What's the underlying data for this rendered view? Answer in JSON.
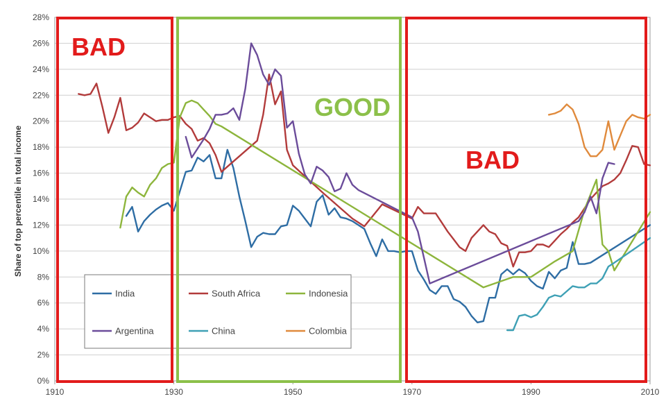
{
  "chart_data": {
    "type": "line",
    "title": "",
    "xlabel": "",
    "ylabel": "Share of top percentile in total income",
    "xlim": [
      1910,
      2010
    ],
    "ylim": [
      0,
      28
    ],
    "x_ticks": [
      "1910",
      "1930",
      "1950",
      "1970",
      "1990",
      "2010"
    ],
    "y_ticks": [
      "0%",
      "2%",
      "4%",
      "6%",
      "8%",
      "10%",
      "12%",
      "14%",
      "16%",
      "18%",
      "20%",
      "22%",
      "24%",
      "26%",
      "28%"
    ],
    "grid": true,
    "legend_position": "bottom-left",
    "series": [
      {
        "name": "India",
        "color": "#2e6da4",
        "points": [
          [
            1922,
            12.7
          ],
          [
            1923,
            13.4
          ],
          [
            1924,
            11.5
          ],
          [
            1925,
            12.3
          ],
          [
            1926,
            12.8
          ],
          [
            1927,
            13.2
          ],
          [
            1928,
            13.5
          ],
          [
            1929,
            13.7
          ],
          [
            1930,
            13.1
          ],
          [
            1931,
            14.6
          ],
          [
            1932,
            16.1
          ],
          [
            1933,
            16.2
          ],
          [
            1934,
            17.2
          ],
          [
            1935,
            16.9
          ],
          [
            1936,
            17.4
          ],
          [
            1937,
            15.6
          ],
          [
            1938,
            15.6
          ],
          [
            1939,
            17.8
          ],
          [
            1940,
            16.4
          ],
          [
            1941,
            14.2
          ],
          [
            1942,
            12.3
          ],
          [
            1943,
            10.3
          ],
          [
            1944,
            11.1
          ],
          [
            1945,
            11.4
          ],
          [
            1946,
            11.3
          ],
          [
            1947,
            11.3
          ],
          [
            1948,
            11.9
          ],
          [
            1949,
            12.0
          ],
          [
            1950,
            13.5
          ],
          [
            1951,
            13.1
          ],
          [
            1952,
            12.5
          ],
          [
            1953,
            11.9
          ],
          [
            1954,
            13.8
          ],
          [
            1955,
            14.3
          ],
          [
            1956,
            12.8
          ],
          [
            1957,
            13.3
          ],
          [
            1958,
            12.6
          ],
          [
            1959,
            12.5
          ],
          [
            1960,
            12.3
          ],
          [
            1961,
            12.0
          ],
          [
            1962,
            11.7
          ],
          [
            1963,
            10.6
          ],
          [
            1964,
            9.6
          ],
          [
            1965,
            10.9
          ],
          [
            1966,
            10.0
          ],
          [
            1967,
            10.0
          ],
          [
            1968,
            9.9
          ],
          [
            1969,
            10.0
          ],
          [
            1970,
            10.0
          ],
          [
            1971,
            8.5
          ],
          [
            1972,
            7.8
          ],
          [
            1973,
            7.0
          ],
          [
            1974,
            6.7
          ],
          [
            1975,
            7.3
          ],
          [
            1976,
            7.3
          ],
          [
            1977,
            6.3
          ],
          [
            1978,
            6.1
          ],
          [
            1979,
            5.7
          ],
          [
            1980,
            5.0
          ],
          [
            1981,
            4.5
          ],
          [
            1982,
            4.6
          ],
          [
            1983,
            6.4
          ],
          [
            1984,
            6.4
          ],
          [
            1985,
            8.2
          ],
          [
            1986,
            8.6
          ],
          [
            1987,
            8.2
          ],
          [
            1988,
            8.6
          ],
          [
            1989,
            8.3
          ],
          [
            1990,
            7.7
          ],
          [
            1991,
            7.3
          ],
          [
            1992,
            7.1
          ],
          [
            1993,
            8.4
          ],
          [
            1994,
            7.9
          ],
          [
            1995,
            8.5
          ],
          [
            1996,
            8.7
          ],
          [
            1997,
            10.7
          ],
          [
            1998,
            9.0
          ],
          [
            1999,
            9.0
          ],
          [
            2000,
            9.1
          ],
          [
            2010,
            12.0
          ]
        ]
      },
      {
        "name": "South Africa",
        "color": "#b23b3b",
        "points": [
          [
            1914,
            22.1
          ],
          [
            1915,
            22.0
          ],
          [
            1916,
            22.1
          ],
          [
            1917,
            22.9
          ],
          [
            1918,
            21.1
          ],
          [
            1919,
            19.1
          ],
          [
            1920,
            20.3
          ],
          [
            1921,
            21.8
          ],
          [
            1922,
            19.3
          ],
          [
            1923,
            19.5
          ],
          [
            1924,
            19.9
          ],
          [
            1925,
            20.6
          ],
          [
            1926,
            20.3
          ],
          [
            1927,
            20.0
          ],
          [
            1928,
            20.1
          ],
          [
            1929,
            20.1
          ],
          [
            1930,
            20.3
          ],
          [
            1931,
            20.4
          ],
          [
            1932,
            19.8
          ],
          [
            1933,
            19.4
          ],
          [
            1934,
            18.5
          ],
          [
            1935,
            18.7
          ],
          [
            1936,
            18.3
          ],
          [
            1937,
            17.4
          ],
          [
            1938,
            16.1
          ],
          [
            1944,
            18.5
          ],
          [
            1945,
            20.5
          ],
          [
            1946,
            23.6
          ],
          [
            1947,
            21.3
          ],
          [
            1948,
            22.3
          ],
          [
            1949,
            17.8
          ],
          [
            1950,
            16.6
          ],
          [
            1955,
            14.5
          ],
          [
            1960,
            12.5
          ],
          [
            1962,
            11.9
          ],
          [
            1965,
            13.6
          ],
          [
            1970,
            12.5
          ],
          [
            1971,
            13.4
          ],
          [
            1972,
            12.9
          ],
          [
            1973,
            12.9
          ],
          [
            1974,
            12.9
          ],
          [
            1976,
            11.5
          ],
          [
            1977,
            10.9
          ],
          [
            1978,
            10.3
          ],
          [
            1979,
            10.0
          ],
          [
            1980,
            11.0
          ],
          [
            1982,
            12.0
          ],
          [
            1983,
            11.5
          ],
          [
            1984,
            11.3
          ],
          [
            1985,
            10.6
          ],
          [
            1986,
            10.4
          ],
          [
            1987,
            8.8
          ],
          [
            1988,
            9.9
          ],
          [
            1989,
            9.9
          ],
          [
            1990,
            10.0
          ],
          [
            1991,
            10.5
          ],
          [
            1992,
            10.5
          ],
          [
            1993,
            10.3
          ],
          [
            1994,
            10.8
          ],
          [
            1995,
            11.3
          ],
          [
            1996,
            11.7
          ],
          [
            1997,
            12.2
          ],
          [
            1998,
            12.6
          ],
          [
            1999,
            13.3
          ],
          [
            2000,
            14.0
          ],
          [
            2001,
            14.5
          ],
          [
            2002,
            15.0
          ],
          [
            2003,
            15.2
          ],
          [
            2004,
            15.5
          ],
          [
            2005,
            16.0
          ],
          [
            2006,
            17.0
          ],
          [
            2007,
            18.1
          ],
          [
            2008,
            18.0
          ],
          [
            2009,
            16.7
          ],
          [
            2010,
            16.6
          ]
        ]
      },
      {
        "name": "Indonesia",
        "color": "#8db53c",
        "points": [
          [
            1921,
            11.8
          ],
          [
            1922,
            14.2
          ],
          [
            1923,
            14.9
          ],
          [
            1924,
            14.5
          ],
          [
            1925,
            14.2
          ],
          [
            1926,
            15.1
          ],
          [
            1927,
            15.6
          ],
          [
            1928,
            16.4
          ],
          [
            1929,
            16.7
          ],
          [
            1930,
            16.8
          ],
          [
            1931,
            20.3
          ],
          [
            1932,
            21.4
          ],
          [
            1933,
            21.6
          ],
          [
            1934,
            21.4
          ],
          [
            1935,
            20.9
          ],
          [
            1936,
            20.4
          ],
          [
            1937,
            19.8
          ],
          [
            1938,
            19.6
          ],
          [
            1982,
            7.2
          ],
          [
            1987,
            8.0
          ],
          [
            1990,
            8.0
          ],
          [
            1994,
            9.2
          ],
          [
            1997,
            10.0
          ],
          [
            1999,
            13.2
          ],
          [
            2001,
            15.5
          ],
          [
            2002,
            10.5
          ],
          [
            2003,
            10.0
          ],
          [
            2004,
            8.5
          ],
          [
            2010,
            13.0
          ]
        ]
      },
      {
        "name": "Argentina",
        "color": "#6b4c9a",
        "points": [
          [
            1932,
            18.8
          ],
          [
            1933,
            17.2
          ],
          [
            1934,
            17.9
          ],
          [
            1935,
            18.6
          ],
          [
            1936,
            19.4
          ],
          [
            1937,
            20.5
          ],
          [
            1938,
            20.5
          ],
          [
            1939,
            20.6
          ],
          [
            1940,
            21.0
          ],
          [
            1941,
            20.1
          ],
          [
            1942,
            22.5
          ],
          [
            1943,
            26.0
          ],
          [
            1944,
            25.1
          ],
          [
            1945,
            23.6
          ],
          [
            1946,
            22.8
          ],
          [
            1947,
            24.0
          ],
          [
            1948,
            23.5
          ],
          [
            1949,
            19.5
          ],
          [
            1950,
            20.0
          ],
          [
            1951,
            17.5
          ],
          [
            1952,
            15.9
          ],
          [
            1953,
            15.2
          ],
          [
            1954,
            16.5
          ],
          [
            1955,
            16.2
          ],
          [
            1956,
            15.7
          ],
          [
            1957,
            14.6
          ],
          [
            1958,
            14.8
          ],
          [
            1959,
            16.0
          ],
          [
            1960,
            15.1
          ],
          [
            1961,
            14.7
          ],
          [
            1970,
            12.6
          ],
          [
            1971,
            11.5
          ],
          [
            1972,
            9.5
          ],
          [
            1973,
            7.5
          ],
          [
            1998,
            12.3
          ],
          [
            1999,
            13.0
          ],
          [
            2000,
            14.2
          ],
          [
            2001,
            12.9
          ],
          [
            2002,
            15.6
          ],
          [
            2003,
            16.8
          ],
          [
            2004,
            16.7
          ]
        ]
      },
      {
        "name": "China",
        "color": "#3ea0b5",
        "points": [
          [
            1986,
            3.9
          ],
          [
            1987,
            3.9
          ],
          [
            1988,
            5.0
          ],
          [
            1989,
            5.1
          ],
          [
            1990,
            4.9
          ],
          [
            1991,
            5.1
          ],
          [
            1992,
            5.7
          ],
          [
            1993,
            6.4
          ],
          [
            1994,
            6.6
          ],
          [
            1995,
            6.5
          ],
          [
            1996,
            6.9
          ],
          [
            1997,
            7.3
          ],
          [
            1998,
            7.2
          ],
          [
            1999,
            7.2
          ],
          [
            2000,
            7.5
          ],
          [
            2001,
            7.5
          ],
          [
            2002,
            7.9
          ],
          [
            2003,
            8.8
          ],
          [
            2004,
            9.1
          ],
          [
            2010,
            11.0
          ]
        ]
      },
      {
        "name": "Colombia",
        "color": "#e08a3c",
        "points": [
          [
            1993,
            20.5
          ],
          [
            1994,
            20.6
          ],
          [
            1995,
            20.8
          ],
          [
            1996,
            21.3
          ],
          [
            1997,
            20.9
          ],
          [
            1998,
            19.8
          ],
          [
            1999,
            18.0
          ],
          [
            2000,
            17.3
          ],
          [
            2001,
            17.3
          ],
          [
            2002,
            17.8
          ],
          [
            2003,
            20.0
          ],
          [
            2004,
            17.8
          ],
          [
            2005,
            18.9
          ],
          [
            2006,
            20.0
          ],
          [
            2007,
            20.5
          ],
          [
            2008,
            20.3
          ],
          [
            2009,
            20.2
          ],
          [
            2010,
            20.5
          ]
        ]
      }
    ],
    "annotations": [
      {
        "text": "BAD",
        "color": "#e21b1b",
        "x_from": 1910,
        "x_to": 1930
      },
      {
        "text": "GOOD",
        "color": "#8cc04a",
        "x_from": 1930,
        "x_to": 1970
      },
      {
        "text": "BAD",
        "color": "#e21b1b",
        "x_from": 1970,
        "x_to": 2010
      }
    ]
  }
}
